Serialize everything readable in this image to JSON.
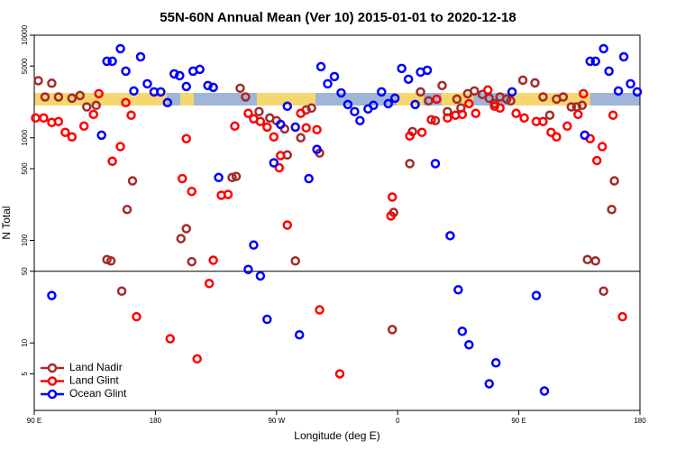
{
  "chart_data": {
    "type": "scatter",
    "title": "55N-60N Annual Mean (Ver 10)   2015-01-01 to 2020-12-18",
    "x_label": "Longitude (deg E)",
    "y_label": "N Total",
    "xlim": [
      90,
      540
    ],
    "xticks": [
      {
        "value": 90,
        "label": "90 E"
      },
      180,
      {
        "value": 270,
        "label": "90 W"
      },
      {
        "value": 360,
        "label": "0"
      },
      {
        "value": 450,
        "label": "90 E"
      },
      {
        "value": 540,
        "label": "180"
      }
    ],
    "ylim": [
      2.2,
      10000
    ],
    "log_y": true,
    "yticks": [
      5,
      10,
      50,
      100,
      500,
      1000,
      5000,
      10000
    ],
    "hline": 50,
    "legend": "lower left",
    "series": [
      {
        "name": "Land Nadir",
        "color": "#a52a2a",
        "x": [
          93,
          98,
          103,
          108,
          118,
          124,
          129,
          136,
          144,
          147,
          155,
          159,
          163,
          199,
          203,
          207,
          237,
          240,
          243,
          247,
          257,
          265,
          270,
          276,
          278,
          284,
          288,
          292,
          296,
          302,
          356,
          357,
          369,
          371,
          377,
          383,
          388,
          393,
          397,
          404,
          407,
          412,
          417,
          423,
          428,
          432,
          436,
          441,
          444,
          453,
          462,
          468,
          473,
          478,
          483,
          489,
          493,
          497,
          501,
          507,
          513,
          519,
          521
        ],
        "values": [
          3600,
          2500,
          3400,
          2500,
          2430,
          2580,
          2000,
          2070,
          65,
          63,
          32,
          200,
          380,
          104,
          130,
          62,
          410,
          420,
          3040,
          2500,
          1800,
          1560,
          1470,
          1220,
          680,
          63,
          1000,
          1870,
          1950,
          710,
          13.5,
          187,
          560,
          1150,
          2800,
          2290,
          1470,
          3230,
          1800,
          2380,
          1950,
          2690,
          2860,
          2640,
          2430,
          2150,
          2500,
          2380,
          2290,
          3640,
          3430,
          2500,
          1660,
          2380,
          2500,
          2000,
          2000,
          2070,
          65,
          63,
          32,
          200,
          380
        ]
      },
      {
        "name": "Land Glint",
        "color": "#ff0000",
        "x": [
          91,
          97,
          103,
          108,
          113,
          118,
          127,
          134,
          138,
          148,
          154,
          158,
          162,
          166,
          191,
          200,
          203,
          207,
          211,
          220,
          223,
          229,
          234,
          239,
          249,
          253,
          258,
          263,
          268,
          272,
          273,
          278,
          288,
          292,
          300,
          302,
          317,
          355,
          356,
          369,
          378,
          385,
          389,
          397,
          403,
          408,
          413,
          418,
          427,
          432,
          436,
          448,
          454,
          463,
          468,
          474,
          478,
          486,
          494,
          498,
          503,
          508,
          512,
          520,
          527
        ],
        "values": [
          1560,
          1560,
          1410,
          1440,
          1130,
          1020,
          1300,
          1690,
          2690,
          590,
          820,
          2200,
          1660,
          18,
          11,
          400,
          980,
          300,
          7,
          38,
          64,
          275,
          280,
          1300,
          1730,
          1530,
          1440,
          1270,
          1020,
          510,
          670,
          141,
          1730,
          1250,
          1200,
          21,
          5,
          173,
          264,
          1040,
          1130,
          1500,
          2380,
          1560,
          1660,
          1690,
          2150,
          1730,
          2920,
          2030,
          1950,
          1730,
          1560,
          1440,
          1440,
          1130,
          1020,
          1300,
          1690,
          2690,
          980,
          600,
          820,
          1660,
          18
        ]
      },
      {
        "name": "Ocean Glint",
        "color": "#0000ff",
        "x": [
          103,
          140,
          144,
          148,
          154,
          158,
          164,
          169,
          174,
          179,
          184,
          189,
          194,
          198,
          203,
          208,
          213,
          219,
          223,
          227,
          249,
          253,
          258,
          263,
          268,
          273,
          278,
          284,
          287,
          294,
          300,
          303,
          308,
          313,
          318,
          323,
          328,
          332,
          338,
          342,
          348,
          353,
          358,
          363,
          368,
          373,
          377,
          382,
          388,
          399,
          405,
          408,
          413,
          428,
          433,
          445,
          463,
          469,
          499,
          503,
          507,
          513,
          517,
          524,
          528,
          533,
          538
        ],
        "values": [
          29,
          1060,
          5570,
          5570,
          7390,
          4460,
          2860,
          6150,
          3360,
          2800,
          2800,
          2200,
          4200,
          4030,
          3160,
          4460,
          4640,
          3230,
          3100,
          410,
          52,
          90,
          45,
          17,
          570,
          1350,
          2030,
          1270,
          12,
          400,
          770,
          4930,
          3360,
          3950,
          2740,
          2110,
          1800,
          1470,
          1910,
          2070,
          2800,
          2150,
          2430,
          4740,
          3720,
          2110,
          4370,
          4550,
          560,
          111,
          33,
          13,
          9.6,
          4,
          6.4,
          2800,
          29,
          3.4,
          1060,
          5570,
          5570,
          7390,
          4460,
          2860,
          6150,
          3360,
          2800
        ]
      }
    ]
  }
}
